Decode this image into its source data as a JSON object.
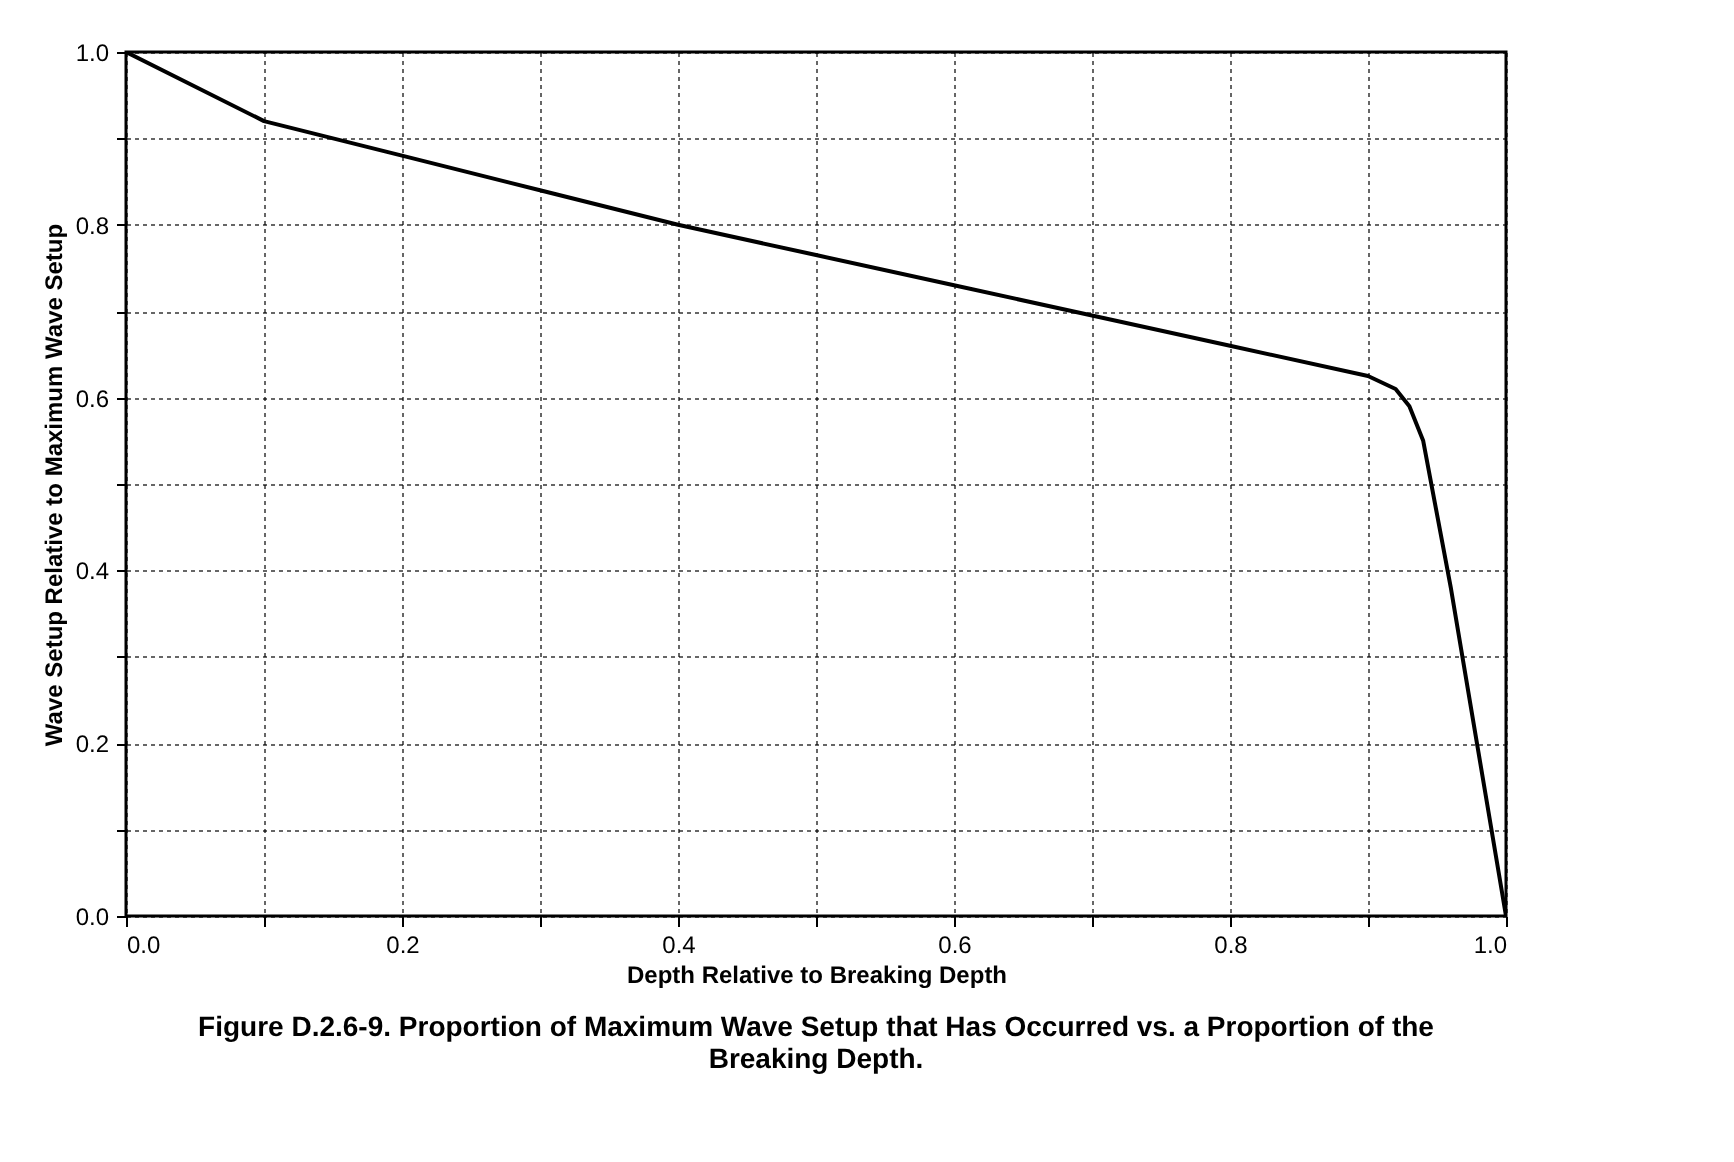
{
  "chart_data": {
    "type": "line",
    "xlabel": "Depth Relative to Breaking Depth",
    "ylabel": "Wave Setup Relative to Maximum Wave Setup",
    "annotations": [
      "Figure D.2.6-9. Proportion of Maximum Wave Setup that Has Occurred vs. a Proportion of the Breaking Depth."
    ],
    "x": [
      0,
      0.1,
      0.2,
      0.3,
      0.4,
      0.5,
      0.6,
      0.7,
      0.8,
      0.9,
      0.92,
      0.93,
      0.94,
      0.96,
      0.98,
      1.0
    ],
    "series": [
      {
        "color": "#000000",
        "values": [
          1.0,
          0.92,
          0.88,
          0.84,
          0.8,
          0.765,
          0.73,
          0.695,
          0.66,
          0.625,
          0.61,
          0.59,
          0.55,
          0.38,
          0.19,
          0.0
        ]
      }
    ],
    "xlim": [
      0,
      1
    ],
    "ylim": [
      0,
      1
    ],
    "xticks": [
      {
        "value": 0,
        "label": "0.0"
      },
      {
        "value": 0.1,
        "label": null
      },
      {
        "value": 0.2,
        "label": "0.2"
      },
      {
        "value": 0.3,
        "label": null
      },
      {
        "value": 0.4,
        "label": "0.4"
      },
      {
        "value": 0.5,
        "label": null
      },
      {
        "value": 0.6,
        "label": "0.6"
      },
      {
        "value": 0.7,
        "label": null
      },
      {
        "value": 0.8,
        "label": "0.8"
      },
      {
        "value": 0.9,
        "label": null
      },
      {
        "value": 1,
        "label": "1.0"
      }
    ],
    "yticks": [
      {
        "value": 0,
        "label": "0.0"
      },
      {
        "value": 0.1,
        "label": null
      },
      {
        "value": 0.2,
        "label": "0.2"
      },
      {
        "value": 0.3,
        "label": null
      },
      {
        "value": 0.4,
        "label": "0.4"
      },
      {
        "value": 0.5,
        "label": null
      },
      {
        "value": 0.6,
        "label": "0.6"
      },
      {
        "value": 0.7,
        "label": null
      },
      {
        "value": 0.8,
        "label": "0.8"
      },
      {
        "value": 0.9,
        "label": null
      },
      {
        "value": 1,
        "label": "1.0"
      }
    ],
    "grid": true,
    "marker": "none",
    "line_style": "solid"
  }
}
